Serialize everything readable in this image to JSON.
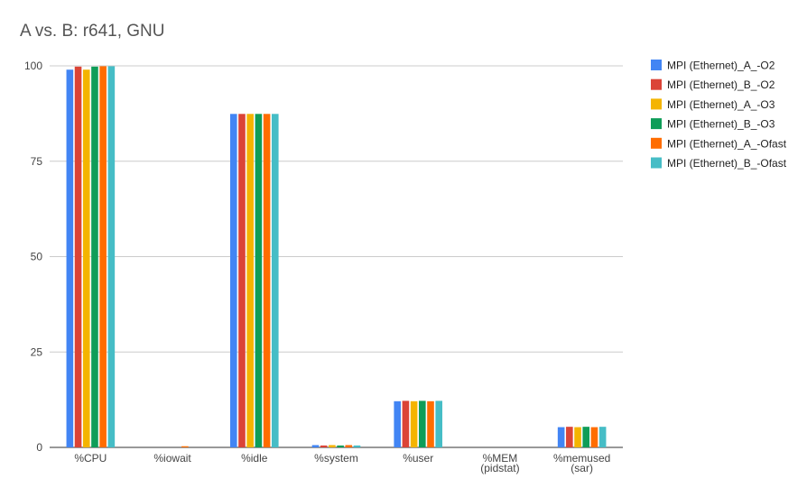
{
  "chart_data": {
    "type": "bar",
    "title": "A vs. B: r641, GNU",
    "xlabel": "",
    "ylabel": "",
    "ylim": [
      0,
      100
    ],
    "yticks": [
      0,
      25,
      50,
      75,
      100
    ],
    "grid": true,
    "legend_position": "right",
    "categories": [
      [
        "%CPU"
      ],
      [
        "%iowait"
      ],
      [
        "%idle"
      ],
      [
        "%system"
      ],
      [
        "%user"
      ],
      [
        "%MEM",
        "(pidstat)"
      ],
      [
        "%memused",
        "(sar)"
      ]
    ],
    "series": [
      {
        "name": "MPI (Ethernet)_A_-O2",
        "color": "#4285f4",
        "values": [
          99.0,
          0.0,
          87.4,
          0.6,
          12.1,
          0.0,
          5.3
        ]
      },
      {
        "name": "MPI (Ethernet)_B_-O2",
        "color": "#db4437",
        "values": [
          99.8,
          0.0,
          87.4,
          0.5,
          12.2,
          0.0,
          5.4
        ]
      },
      {
        "name": "MPI (Ethernet)_A_-O3",
        "color": "#f4b400",
        "values": [
          99.0,
          0.0,
          87.4,
          0.6,
          12.1,
          0.0,
          5.3
        ]
      },
      {
        "name": "MPI (Ethernet)_B_-O3",
        "color": "#0f9d58",
        "values": [
          99.8,
          0.0,
          87.4,
          0.5,
          12.2,
          0.0,
          5.4
        ]
      },
      {
        "name": "MPI (Ethernet)_A_-Ofast",
        "color": "#ff6d00",
        "values": [
          99.9,
          0.3,
          87.4,
          0.6,
          12.1,
          0.0,
          5.3
        ]
      },
      {
        "name": "MPI (Ethernet)_B_-Ofast",
        "color": "#46bdc6",
        "values": [
          99.9,
          0.0,
          87.4,
          0.5,
          12.2,
          0.0,
          5.4
        ]
      }
    ]
  }
}
